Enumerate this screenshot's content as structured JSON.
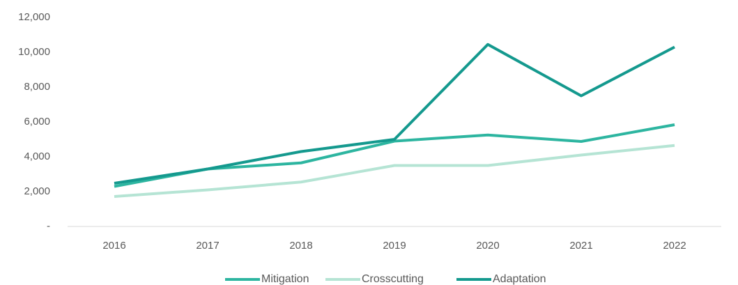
{
  "chart_data": {
    "type": "line",
    "categories": [
      "2016",
      "2017",
      "2018",
      "2019",
      "2020",
      "2021",
      "2022"
    ],
    "series": [
      {
        "name": "Mitigation",
        "color": "#2db5a0",
        "values": [
          2300,
          3300,
          3650,
          4900,
          5250,
          4880,
          5840
        ]
      },
      {
        "name": "Crosscutting",
        "color": "#b5e4d4",
        "values": [
          1720,
          2100,
          2550,
          3500,
          3500,
          4100,
          4650
        ]
      },
      {
        "name": "Adaptation",
        "color": "#14998e",
        "values": [
          2480,
          3300,
          4300,
          5000,
          10450,
          7500,
          10300
        ]
      }
    ],
    "ylim": [
      0,
      12000
    ],
    "yticks": [
      {
        "value": 0,
        "label": "-"
      },
      {
        "value": 2000,
        "label": "2,000"
      },
      {
        "value": 4000,
        "label": "4,000"
      },
      {
        "value": 6000,
        "label": "6,000"
      },
      {
        "value": 8000,
        "label": "8,000"
      },
      {
        "value": 10000,
        "label": "10,000"
      },
      {
        "value": 12000,
        "label": "12,000"
      }
    ],
    "grid": false,
    "legend": "bottom"
  }
}
